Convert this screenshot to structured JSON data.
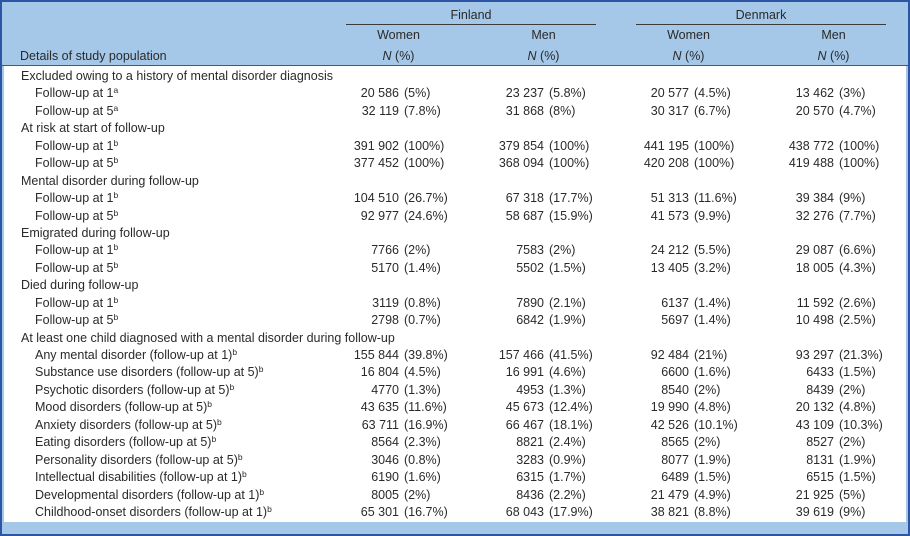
{
  "colors": {
    "header_bg": "#a5c7e8",
    "frame_border": "#2d55a6",
    "header_rule": "#55565a",
    "text": "#2a2a2a"
  },
  "table": {
    "stub_header": "Details of study population",
    "unit_n": "N",
    "unit_pct": "(%)",
    "col_groups": [
      {
        "label": "Finland",
        "columns": [
          "Women",
          "Men"
        ]
      },
      {
        "label": "Denmark",
        "columns": [
          "Women",
          "Men"
        ]
      }
    ],
    "rows": [
      {
        "type": "section",
        "label": "Excluded owing to a history of mental disorder diagnosis"
      },
      {
        "type": "data",
        "label": "Follow-up at 1",
        "sup": "a",
        "values": [
          "20 586 (5%)",
          "23 237 (5.8%)",
          "20 577 (4.5%)",
          "13 462 (3%)"
        ]
      },
      {
        "type": "data",
        "label": "Follow-up at 5",
        "sup": "a",
        "values": [
          "32 119 (7.8%)",
          "31 868 (8%)",
          "30 317 (6.7%)",
          "20 570 (4.7%)"
        ]
      },
      {
        "type": "section",
        "label": "At risk at start of follow-up"
      },
      {
        "type": "data",
        "label": "Follow-up at 1",
        "sup": "b",
        "values": [
          "391 902 (100%)",
          "379 854 (100%)",
          "441 195 (100%)",
          "438 772 (100%)"
        ]
      },
      {
        "type": "data",
        "label": "Follow-up at 5",
        "sup": "b",
        "values": [
          "377 452 (100%)",
          "368 094 (100%)",
          "420 208 (100%)",
          "419 488 (100%)"
        ]
      },
      {
        "type": "section",
        "label": "Mental disorder during follow-up"
      },
      {
        "type": "data",
        "label": "Follow-up at 1",
        "sup": "b",
        "values": [
          "104 510 (26.7%)",
          "67 318 (17.7%)",
          "51 313 (11.6%)",
          "39 384 (9%)"
        ]
      },
      {
        "type": "data",
        "label": "Follow-up at 5",
        "sup": "b",
        "values": [
          "92 977 (24.6%)",
          "58 687 (15.9%)",
          "41 573 (9.9%)",
          "32 276 (7.7%)"
        ]
      },
      {
        "type": "section",
        "label": "Emigrated during follow-up"
      },
      {
        "type": "data",
        "label": "Follow-up at 1",
        "sup": "b",
        "values": [
          "7766 (2%)",
          "7583 (2%)",
          "24 212 (5.5%)",
          "29 087 (6.6%)"
        ]
      },
      {
        "type": "data",
        "label": "Follow-up at 5",
        "sup": "b",
        "values": [
          "5170 (1.4%)",
          "5502 (1.5%)",
          "13 405 (3.2%)",
          "18 005 (4.3%)"
        ]
      },
      {
        "type": "section",
        "label": "Died during follow-up"
      },
      {
        "type": "data",
        "label": "Follow-up at 1",
        "sup": "b",
        "values": [
          "3119 (0.8%)",
          "7890 (2.1%)",
          "6137 (1.4%)",
          "11 592 (2.6%)"
        ]
      },
      {
        "type": "data",
        "label": "Follow-up at 5",
        "sup": "b",
        "values": [
          "2798 (0.7%)",
          "6842 (1.9%)",
          "5697 (1.4%)",
          "10 498 (2.5%)"
        ]
      },
      {
        "type": "section",
        "label": "At least one child diagnosed with a mental disorder during follow-up"
      },
      {
        "type": "data",
        "label": "Any mental disorder (follow-up at 1)",
        "sup": "b",
        "values": [
          "155 844 (39.8%)",
          "157 466 (41.5%)",
          "92 484 (21%)",
          "93 297 (21.3%)"
        ]
      },
      {
        "type": "data",
        "label": "Substance use disorders (follow-up at 5)",
        "sup": "b",
        "values": [
          "16 804 (4.5%)",
          "16 991 (4.6%)",
          "6600 (1.6%)",
          "6433 (1.5%)"
        ]
      },
      {
        "type": "data",
        "label": "Psychotic disorders (follow-up at 5)",
        "sup": "b",
        "values": [
          "4770 (1.3%)",
          "4953 (1.3%)",
          "8540 (2%)",
          "8439 (2%)"
        ]
      },
      {
        "type": "data",
        "label": "Mood disorders (follow-up at 5)",
        "sup": "b",
        "values": [
          "43 635 (11.6%)",
          "45 673 (12.4%)",
          "19 990 (4.8%)",
          "20 132 (4.8%)"
        ]
      },
      {
        "type": "data",
        "label": "Anxiety disorders (follow-up at 5)",
        "sup": "b",
        "values": [
          "63 711 (16.9%)",
          "66 467 (18.1%)",
          "42 526 (10.1%)",
          "43 109 (10.3%)"
        ]
      },
      {
        "type": "data",
        "label": "Eating disorders (follow-up at 5)",
        "sup": "b",
        "values": [
          "8564 (2.3%)",
          "8821 (2.4%)",
          "8565 (2%)",
          "8527 (2%)"
        ]
      },
      {
        "type": "data",
        "label": "Personality disorders (follow-up at 5)",
        "sup": "b",
        "values": [
          "3046 (0.8%)",
          "3283 (0.9%)",
          "8077 (1.9%)",
          "8131 (1.9%)"
        ]
      },
      {
        "type": "data",
        "label": "Intellectual disabilities (follow-up at 1)",
        "sup": "b",
        "values": [
          "6190 (1.6%)",
          "6315 (1.7%)",
          "6489 (1.5%)",
          "6515 (1.5%)"
        ]
      },
      {
        "type": "data",
        "label": "Developmental disorders (follow-up at 1)",
        "sup": "b",
        "values": [
          "8005 (2%)",
          "8436 (2.2%)",
          "21 479 (4.9%)",
          "21 925 (5%)"
        ]
      },
      {
        "type": "data",
        "label": "Childhood-onset disorders (follow-up at 1)",
        "sup": "b",
        "values": [
          "65 301 (16.7%)",
          "68 043 (17.9%)",
          "38 821 (8.8%)",
          "39 619 (9%)"
        ]
      }
    ]
  }
}
